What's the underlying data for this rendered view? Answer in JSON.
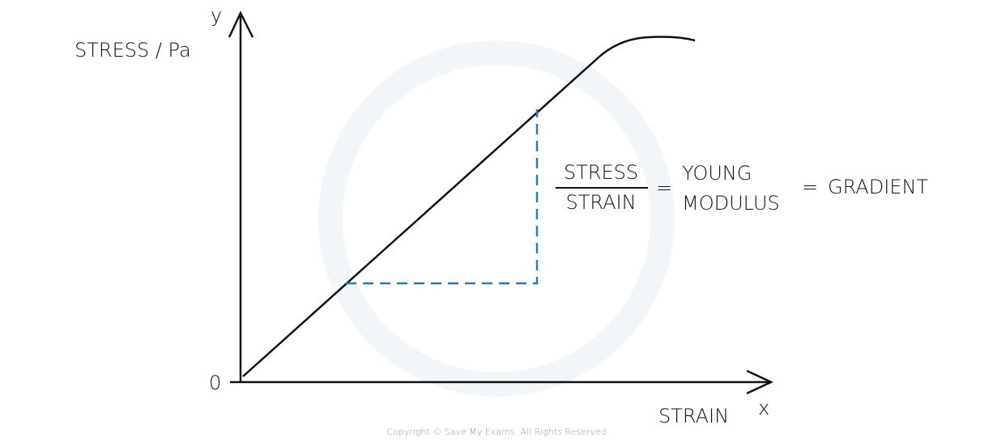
{
  "axes": {
    "y_symbol": "y",
    "y_label": "STRESS / Pa",
    "origin": "0",
    "x_label": "STRAIN",
    "x_symbol": "x"
  },
  "equation": {
    "numerator": "STRESS",
    "denominator": "STRAIN",
    "equals_1": "=",
    "term_line_1": "YOUNG",
    "term_line_2": "MODULUS",
    "equals_2": "=",
    "result": "GRADIENT"
  },
  "footer": {
    "copyright": "Copyright © Save My Exams. All Rights Reserved"
  }
}
